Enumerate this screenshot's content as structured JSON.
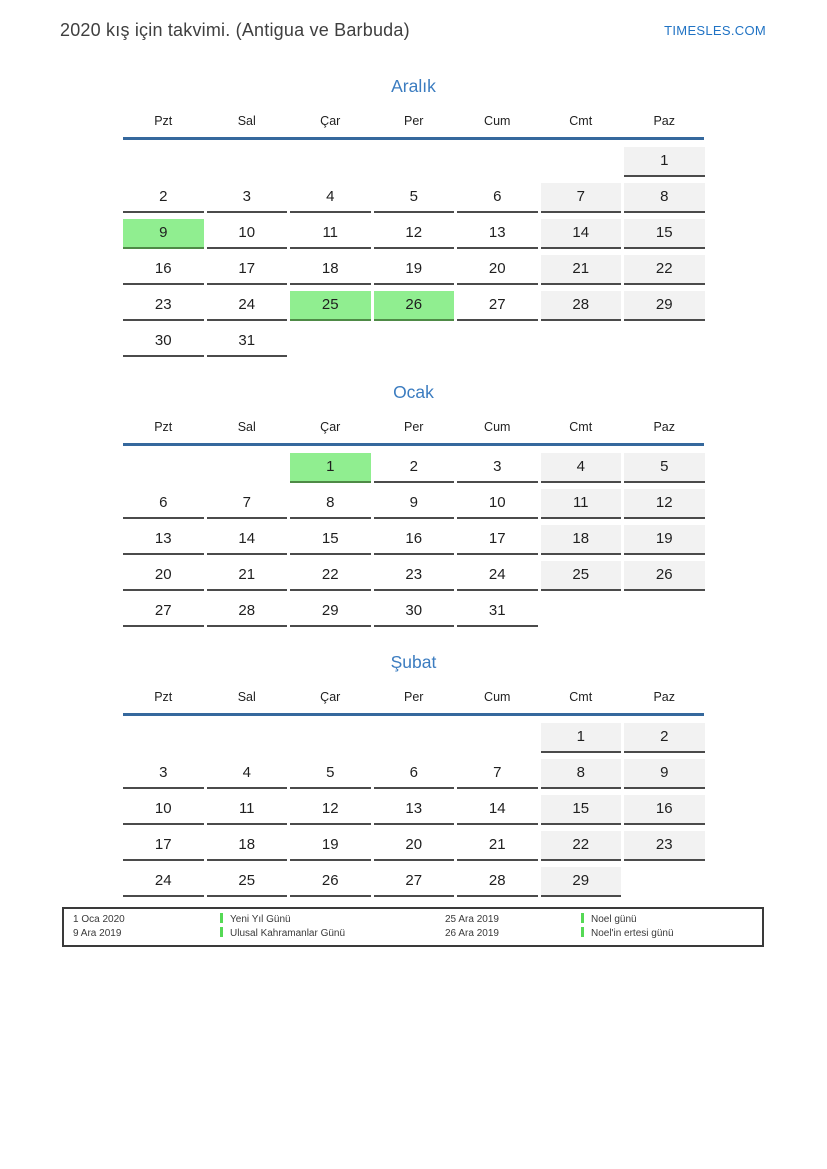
{
  "header": {
    "title": "2020 kış için takvimi. (Antigua ve Barbuda)",
    "site": "TIMESLES.COM"
  },
  "weekdays": [
    "Pzt",
    "Sal",
    "Çar",
    "Per",
    "Cum",
    "Cmt",
    "Paz"
  ],
  "colors": {
    "month_title": "#3b7cc0",
    "rule": "#35689d",
    "holiday_bg": "#90ee90",
    "weekend_bg": "#f2f2f2",
    "legend_marker": "#55d955",
    "site_link": "#2073c4"
  },
  "months": [
    {
      "name": "Aralık",
      "holidays": [
        9,
        25,
        26
      ],
      "weeks": [
        [
          null,
          null,
          null,
          null,
          null,
          null,
          1
        ],
        [
          2,
          3,
          4,
          5,
          6,
          7,
          8
        ],
        [
          9,
          10,
          11,
          12,
          13,
          14,
          15
        ],
        [
          16,
          17,
          18,
          19,
          20,
          21,
          22
        ],
        [
          23,
          24,
          25,
          26,
          27,
          28,
          29
        ],
        [
          30,
          31,
          null,
          null,
          null,
          null,
          null
        ]
      ]
    },
    {
      "name": "Ocak",
      "holidays": [
        1
      ],
      "weeks": [
        [
          null,
          null,
          1,
          2,
          3,
          4,
          5
        ],
        [
          6,
          7,
          8,
          9,
          10,
          11,
          12
        ],
        [
          13,
          14,
          15,
          16,
          17,
          18,
          19
        ],
        [
          20,
          21,
          22,
          23,
          24,
          25,
          26
        ],
        [
          27,
          28,
          29,
          30,
          31,
          null,
          null
        ]
      ]
    },
    {
      "name": "Şubat",
      "holidays": [],
      "weeks": [
        [
          null,
          null,
          null,
          null,
          null,
          1,
          2
        ],
        [
          3,
          4,
          5,
          6,
          7,
          8,
          9
        ],
        [
          10,
          11,
          12,
          13,
          14,
          15,
          16
        ],
        [
          17,
          18,
          19,
          20,
          21,
          22,
          23
        ],
        [
          24,
          25,
          26,
          27,
          28,
          29,
          null
        ]
      ]
    }
  ],
  "legend": {
    "entries": [
      {
        "date": "1 Oca 2020",
        "label": "Yeni Yıl Günü"
      },
      {
        "date": "9 Ara 2019",
        "label": "Ulusal Kahramanlar Günü"
      },
      {
        "date": "25 Ara 2019",
        "label": "Noel günü"
      },
      {
        "date": "26 Ara 2019",
        "label": "Noel'in ertesi günü"
      }
    ]
  }
}
